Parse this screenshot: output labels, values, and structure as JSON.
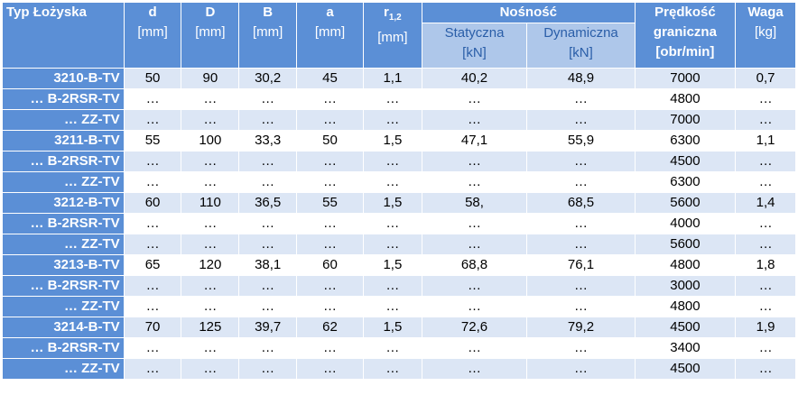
{
  "headers": {
    "type": "Typ Łożyska",
    "d": "d",
    "d_unit": "[mm]",
    "D": "D",
    "D_unit": "[mm]",
    "B": "B",
    "B_unit": "[mm]",
    "a": "a",
    "a_unit": "[mm]",
    "r": "r",
    "r_sub": "1,2",
    "r_unit": "[mm]",
    "load": "Nośność",
    "static": "Statyczna",
    "static_unit": "[kN]",
    "dynamic": "Dynamiczna",
    "dynamic_unit": "[kN]",
    "speed_line1": "Prędkość",
    "speed_line2": "graniczna",
    "speed_unit": "[obr/min]",
    "weight": "Waga",
    "weight_unit": "[kg]"
  },
  "rows": [
    {
      "type": "3210-B-TV",
      "d": "50",
      "D": "90",
      "B": "30,2",
      "a": "45",
      "r": "1,1",
      "stat": "40,2",
      "dyn": "48,9",
      "speed": "7000",
      "weight": "0,7"
    },
    {
      "type": "… B-2RSR-TV",
      "d": "…",
      "D": "…",
      "B": "…",
      "a": "…",
      "r": "…",
      "stat": "…",
      "dyn": "…",
      "speed": "4800",
      "weight": "…"
    },
    {
      "type": "… ZZ-TV",
      "d": "…",
      "D": "…",
      "B": "…",
      "a": "…",
      "r": "…",
      "stat": "…",
      "dyn": "…",
      "speed": "7000",
      "weight": "…"
    },
    {
      "type": "3211-B-TV",
      "d": "55",
      "D": "100",
      "B": "33,3",
      "a": "50",
      "r": "1,5",
      "stat": "47,1",
      "dyn": "55,9",
      "speed": "6300",
      "weight": "1,1"
    },
    {
      "type": "… B-2RSR-TV",
      "d": "…",
      "D": "…",
      "B": "…",
      "a": "…",
      "r": "…",
      "stat": "…",
      "dyn": "…",
      "speed": "4500",
      "weight": "…"
    },
    {
      "type": "… ZZ-TV",
      "d": "…",
      "D": "…",
      "B": "…",
      "a": "…",
      "r": "…",
      "stat": "…",
      "dyn": "…",
      "speed": "6300",
      "weight": "…"
    },
    {
      "type": "3212-B-TV",
      "d": "60",
      "D": "110",
      "B": "36,5",
      "a": "55",
      "r": "1,5",
      "stat": "58,",
      "dyn": "68,5",
      "speed": "5600",
      "weight": "1,4"
    },
    {
      "type": "… B-2RSR-TV",
      "d": "…",
      "D": "…",
      "B": "…",
      "a": "…",
      "r": "…",
      "stat": "…",
      "dyn": "…",
      "speed": "4000",
      "weight": "…"
    },
    {
      "type": "… ZZ-TV",
      "d": "…",
      "D": "…",
      "B": "…",
      "a": "…",
      "r": "…",
      "stat": "…",
      "dyn": "…",
      "speed": "5600",
      "weight": "…"
    },
    {
      "type": "3213-B-TV",
      "d": "65",
      "D": "120",
      "B": "38,1",
      "a": "60",
      "r": "1,5",
      "stat": "68,8",
      "dyn": "76,1",
      "speed": "4800",
      "weight": "1,8"
    },
    {
      "type": "… B-2RSR-TV",
      "d": "…",
      "D": "…",
      "B": "…",
      "a": "…",
      "r": "…",
      "stat": "…",
      "dyn": "…",
      "speed": "3000",
      "weight": "…"
    },
    {
      "type": "… ZZ-TV",
      "d": "…",
      "D": "…",
      "B": "…",
      "a": "…",
      "r": "…",
      "stat": "…",
      "dyn": "…",
      "speed": "4800",
      "weight": "…"
    },
    {
      "type": "3214-B-TV",
      "d": "70",
      "D": "125",
      "B": "39,7",
      "a": "62",
      "r": "1,5",
      "stat": "72,6",
      "dyn": "79,2",
      "speed": "4500",
      "weight": "1,9"
    },
    {
      "type": "… B-2RSR-TV",
      "d": "…",
      "D": "…",
      "B": "…",
      "a": "…",
      "r": "…",
      "stat": "…",
      "dyn": "…",
      "speed": "3400",
      "weight": "…"
    },
    {
      "type": "… ZZ-TV",
      "d": "…",
      "D": "…",
      "B": "…",
      "a": "…",
      "r": "…",
      "stat": "…",
      "dyn": "…",
      "speed": "4500",
      "weight": "…"
    }
  ]
}
